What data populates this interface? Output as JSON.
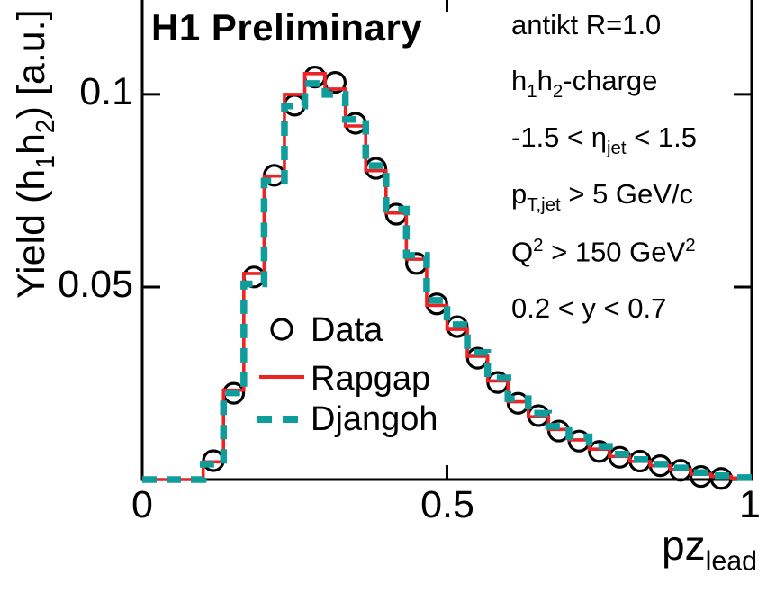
{
  "title": "H1 Preliminary",
  "colors": {
    "background": "#ffffff",
    "frame": "#000000",
    "data_marker": "#000000",
    "rapgap": "#ee2222",
    "djangoh": "#0f9d9c",
    "text": "#000000"
  },
  "legend": [
    {
      "label": "Data",
      "marker": "open-circle"
    },
    {
      "label": "Rapgap",
      "marker": "solid-line"
    },
    {
      "label": "Djangoh",
      "marker": "dashed-line"
    }
  ],
  "annotations": [
    {
      "segments": [
        {
          "t": "antikt R=1.0"
        }
      ]
    },
    {
      "segments": [
        {
          "t": "h"
        },
        {
          "sub": "1"
        },
        {
          "t": "h"
        },
        {
          "sub": "2"
        },
        {
          "t": "-charge"
        }
      ]
    },
    {
      "segments": [
        {
          "t": "-1.5 < η"
        },
        {
          "sub": "jet"
        },
        {
          "t": " < 1.5"
        }
      ]
    },
    {
      "segments": [
        {
          "t": "p"
        },
        {
          "sub": "T,jet"
        },
        {
          "t": " > 5 GeV/c"
        }
      ]
    },
    {
      "segments": [
        {
          "t": "Q"
        },
        {
          "sup": "2"
        },
        {
          "t": " >  150 GeV"
        },
        {
          "sup": "2"
        }
      ]
    },
    {
      "segments": [
        {
          "t": "0.2 < y < 0.7"
        }
      ]
    }
  ],
  "axis": {
    "x_label_segments": [
      {
        "t": "pz"
      },
      {
        "sub": "lead"
      }
    ],
    "y_label_segments": [
      {
        "t": "Yield (h"
      },
      {
        "sub": "1"
      },
      {
        "t": "h"
      },
      {
        "sub": "2"
      },
      {
        "t": ")  [a.u.]"
      }
    ],
    "xtick_labels": [
      "0",
      "0.5",
      "1"
    ],
    "ytick_labels": [
      "0.05",
      "0.1"
    ]
  },
  "chart_data": {
    "type": "line",
    "subtype": "step-histogram (Rapgap solid, Djangoh dashed) with open-circle data markers",
    "title": "H1 Preliminary",
    "xlabel": "pz_lead",
    "ylabel": "Yield (h1h2) [a.u.]",
    "xlim": [
      0,
      1
    ],
    "ylim": [
      0,
      0.1245
    ],
    "grid": false,
    "legend_position": "inside center-left",
    "xticks": [
      0,
      0.5,
      1
    ],
    "yticks": [
      0.05,
      0.1
    ],
    "bin_width": 0.03333,
    "bin_centers": [
      0.0167,
      0.05,
      0.0833,
      0.1167,
      0.15,
      0.1833,
      0.2167,
      0.25,
      0.2833,
      0.3167,
      0.35,
      0.3833,
      0.4167,
      0.45,
      0.4833,
      0.5167,
      0.55,
      0.5833,
      0.6167,
      0.65,
      0.6833,
      0.7167,
      0.75,
      0.7833,
      0.8167,
      0.85,
      0.8833,
      0.9167,
      0.95,
      0.9833
    ],
    "series": [
      {
        "name": "Data",
        "style": "open-circle-markers",
        "color": "#000000",
        "values": [
          null,
          null,
          null,
          0.0049,
          0.0224,
          0.0526,
          0.079,
          0.0972,
          0.1045,
          0.1031,
          0.0925,
          0.0808,
          0.0689,
          0.0561,
          0.0456,
          0.0397,
          0.0315,
          0.0252,
          0.0198,
          0.0166,
          0.0126,
          0.01,
          0.0073,
          0.0058,
          0.0048,
          0.0036,
          0.0024,
          0.0008,
          0.0003,
          null
        ]
      },
      {
        "name": "Rapgap",
        "style": "solid-step-line",
        "color": "#ee2222",
        "values": [
          0,
          0,
          0,
          0.0046,
          0.0232,
          0.0535,
          0.0788,
          0.1,
          0.1054,
          0.1014,
          0.0918,
          0.0802,
          0.0692,
          0.0572,
          0.0452,
          0.039,
          0.032,
          0.0256,
          0.0202,
          0.0163,
          0.013,
          0.0103,
          0.0079,
          0.006,
          0.0047,
          0.0036,
          0.0026,
          0.0014,
          0.0008,
          0.0004
        ]
      },
      {
        "name": "Djangoh",
        "style": "dashed-step-line",
        "color": "#0f9d9c",
        "values": [
          0,
          0,
          0,
          0.004,
          0.0225,
          0.0508,
          0.0775,
          0.097,
          0.1028,
          0.1,
          0.0935,
          0.0815,
          0.0702,
          0.0582,
          0.0465,
          0.0402,
          0.033,
          0.0264,
          0.021,
          0.0172,
          0.0138,
          0.0111,
          0.0086,
          0.0066,
          0.0052,
          0.004,
          0.003,
          0.0018,
          0.001,
          0.0005
        ]
      }
    ],
    "annotations_text": [
      "antikt R=1.0",
      "h1h2-charge",
      "-1.5 < eta_jet < 1.5",
      "p_T,jet > 5 GeV/c",
      "Q^2 > 150 GeV^2",
      "0.2 < y < 0.7"
    ]
  }
}
